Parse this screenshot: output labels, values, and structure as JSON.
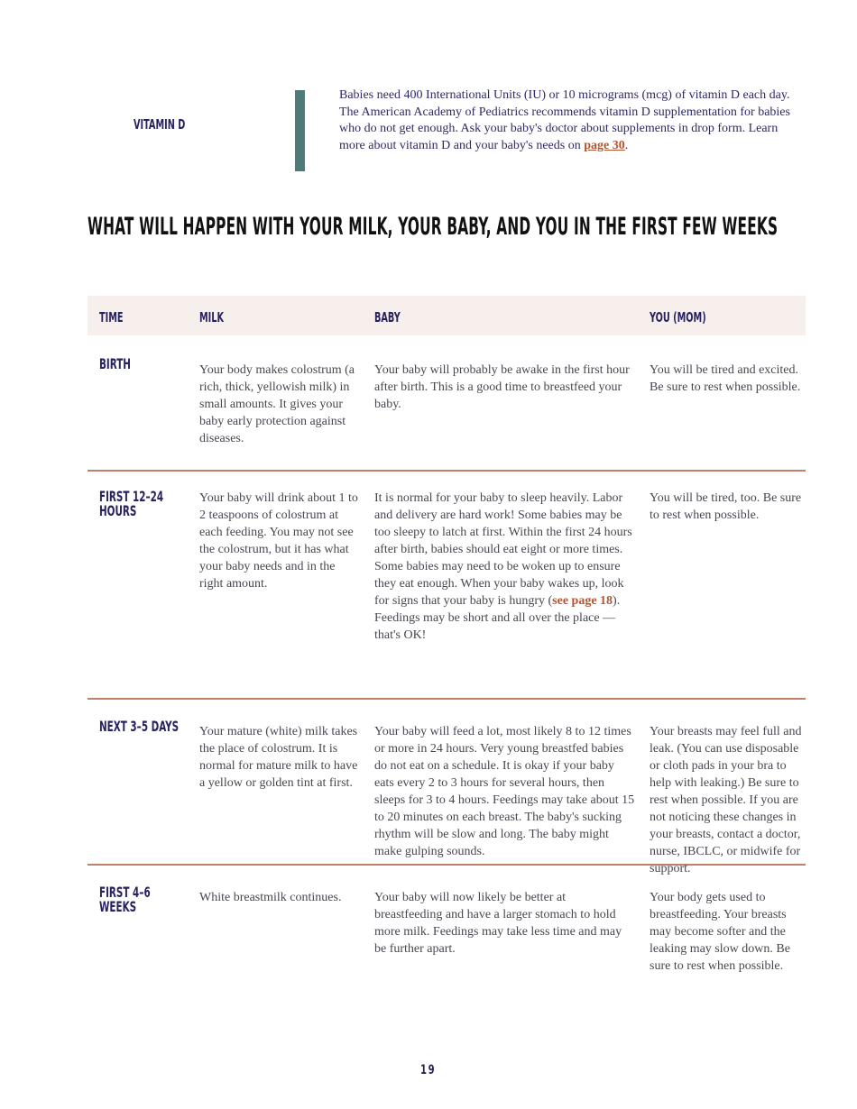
{
  "vitamin_d": {
    "label": "VITAMIN D",
    "text": "Babies need 400 International Units (IU) or 10 micrograms (mcg) of vitamin D each day. The American Academy of Pediatrics recommends vitamin D supplementation for babies who do not get enough. Ask your baby's doctor about supplements in drop form. Learn more about vitamin D and your baby's needs on ",
    "link": "page 30",
    "end": "."
  },
  "title": "WHAT WILL HAPPEN WITH YOUR MILK, YOUR BABY, AND YOU IN THE FIRST FEW WEEKS",
  "table": {
    "headers": [
      "TIME",
      "MILK",
      "BABY",
      "YOU (MOM)"
    ],
    "rows": [
      {
        "time": "BIRTH",
        "milk": "Your body makes colostrum (a rich, thick, yellowish milk) in small amounts. It gives your baby early protection against diseases.",
        "baby": "Your baby will probably be awake in the first hour after birth. This is a good time to breastfeed your baby.",
        "you": "You will be tired and excited. Be sure to rest when possible."
      },
      {
        "time": "FIRST 12–24 HOURS",
        "milk": "Your baby will drink about 1 to 2 teaspoons of colostrum at each feeding. You may not see the colostrum, but it has what your baby needs and in the right amount.",
        "baby": "It is normal for your baby to sleep heavily. Labor and delivery are hard work! Some babies may be too sleepy to latch at first. Within the first 24 hours after birth, babies should eat eight or more times. Some babies may need to be woken up to ensure they eat enough. When your baby wakes up, look for signs that your baby is hungry (",
        "baby_link": "see page 18",
        "baby_end": "). Feedings may be short and all over the place — that's OK!",
        "you": "You will be tired, too. Be sure to rest when possible."
      },
      {
        "time": "NEXT 3–5 DAYS",
        "milk": "Your mature (white) milk takes the place of colostrum. It is normal for mature milk to have a yellow or golden tint at first.",
        "baby": "Your baby will feed a lot, most likely 8 to 12 times or more in 24 hours. Very young breastfed babies do not eat on a schedule. It is okay if your baby eats every 2 to 3 hours for several hours, then sleeps for 3 to 4 hours. Feedings may take about 15 to 20 minutes on each breast. The baby's sucking rhythm will be slow and long. The baby might make gulping sounds.",
        "you": "Your breasts may feel full and leak. (You can use disposable or cloth pads in your bra to help with leaking.) Be sure to rest when possible. If you are not noticing these changes in your breasts, contact a doctor, nurse, IBCLC, or midwife for support."
      },
      {
        "time": "FIRST 4–6 WEEKS",
        "milk": "White breastmilk continues.",
        "baby": "Your baby will now likely be better at breastfeeding and have a larger stomach to hold more milk. Feedings may take less time and may be further apart.",
        "you": "Your body gets used to breastfeeding. Your breasts may become softer and the leaking may slow down. Be sure to rest when possible."
      }
    ]
  },
  "page_number": "19",
  "colors": {
    "navy": "#27225e",
    "teal_bar": "#4f7a7a",
    "link": "#b4552f",
    "header_bg": "#f6efec",
    "divider": "#c08066"
  }
}
